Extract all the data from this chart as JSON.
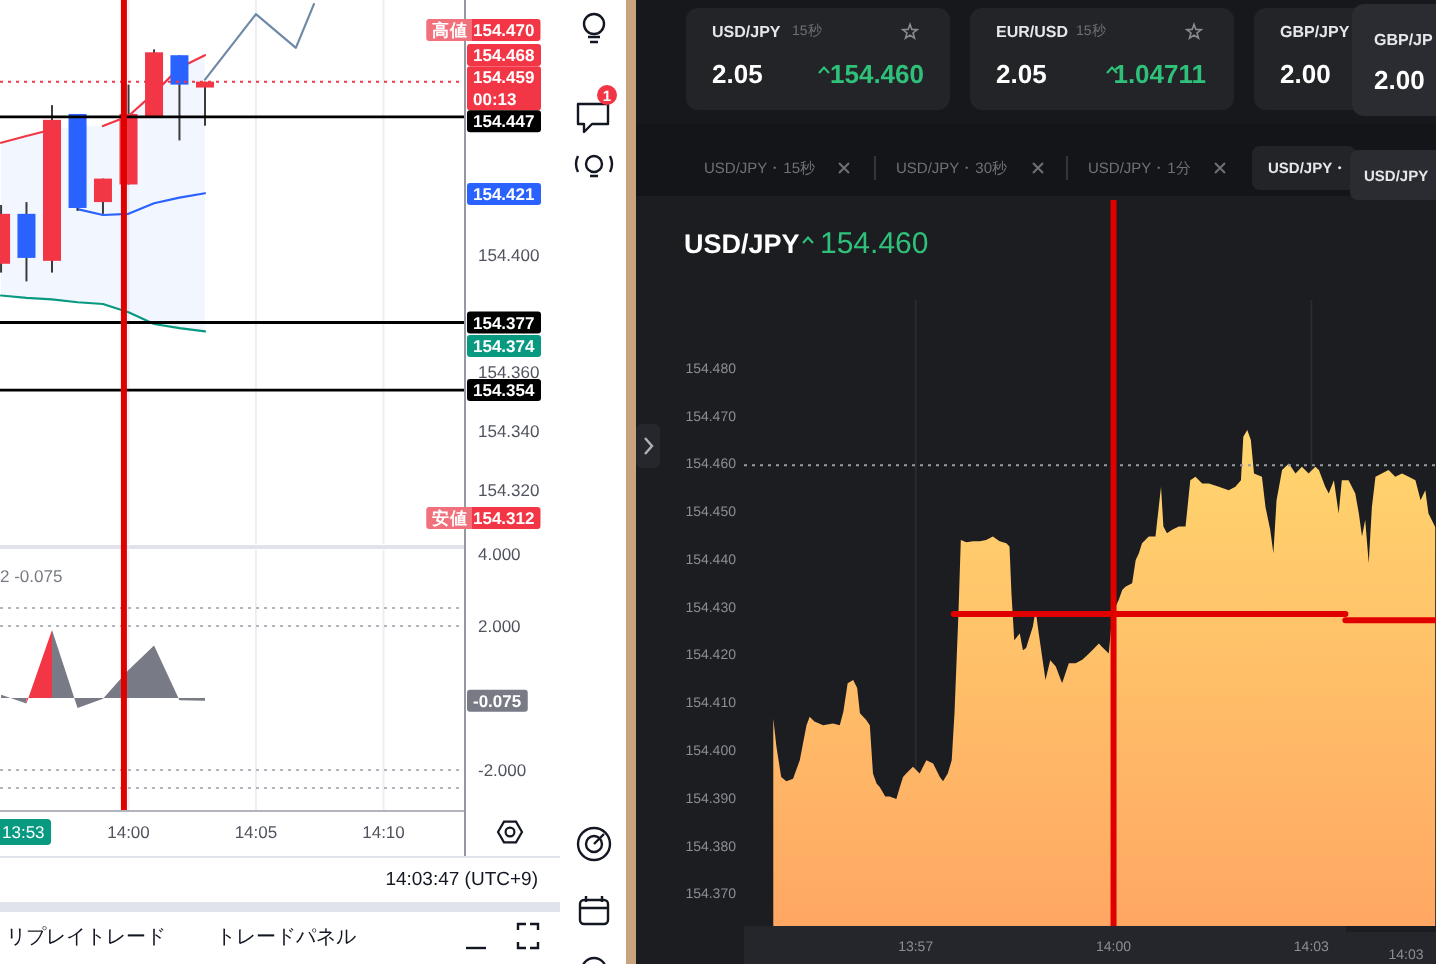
{
  "chart_data": [
    {
      "type": "candlestick",
      "x": [
        13.9167,
        13.9333,
        13.95,
        13.9667,
        13.9833,
        14.0,
        14.0167,
        14.0333,
        14.05
      ],
      "ohlc": [
        [
          154.397,
          154.417,
          154.394,
          154.414
        ],
        [
          154.414,
          154.418,
          154.391,
          154.399
        ],
        [
          154.398,
          154.451,
          154.394,
          154.446
        ],
        [
          154.448,
          154.448,
          154.415,
          154.416
        ],
        [
          154.418,
          154.426,
          154.414,
          154.426
        ],
        [
          154.424,
          154.458,
          154.424,
          154.448
        ],
        [
          154.447,
          154.47,
          154.447,
          154.469
        ],
        [
          154.468,
          154.468,
          154.439,
          154.458
        ],
        [
          154.457,
          154.459,
          154.444,
          154.459
        ]
      ],
      "colors": [
        "#f23645",
        "#2962ff",
        "#f23645",
        "#2962ff",
        "#f23645",
        "#f23645",
        "#f23645",
        "#2962ff",
        "#f23645"
      ],
      "series": [
        {
          "type": "line",
          "color": "#f23645",
          "values": [
            154.4382,
            154.4405,
            154.4427,
            null,
            154.4439,
            154.4473,
            154.4551,
            154.4637,
            154.468
          ]
        },
        {
          "type": "line",
          "color": "#2962ff",
          "values": [
            null,
            null,
            null,
            154.4156,
            154.4136,
            154.414,
            154.4176,
            154.4195,
            154.421
          ],
          "lower": [
            154.3862,
            154.3854,
            154.3849,
            154.3839,
            154.3833,
            154.3805,
            154.3765,
            154.3751,
            154.374
          ],
          "upper": [
            154.4382,
            154.4405,
            154.4427,
            154.4439,
            154.4439,
            154.4473,
            154.4551,
            154.4637,
            154.468
          ]
        },
        {
          "type": "line",
          "color": "#089981",
          "values": [
            154.3862,
            154.3854,
            154.3849,
            154.3839,
            154.3833,
            154.3805,
            154.3765,
            154.3751,
            154.374
          ]
        },
        {
          "type": "line",
          "color": "#6f8aa6",
          "x": [
            14.05,
            14.0833,
            14.1094,
            14.1212
          ],
          "values": [
            154.4597,
            154.482,
            154.4705,
            154.4854
          ]
        }
      ],
      "xlim": [
        13.916,
        14.2193
      ],
      "xticks": [
        {
          "value": 14.0,
          "label": null
        },
        {
          "value": 14.0833,
          "label": null
        },
        {
          "value": 14.1667,
          "label": null
        }
      ],
      "ylim": [
        154.3016,
        154.4868
      ],
      "yticks": [
        {
          "value": 154.32,
          "label": "154.320"
        },
        {
          "value": 154.34,
          "label": "154.340"
        },
        {
          "value": 154.36,
          "label": "154.360"
        },
        {
          "value": 154.4,
          "label": "154.400"
        }
      ],
      "tick_labels": "y",
      "grid": "x",
      "ref_lines": [
        {
          "axis": "y",
          "value": 154.459,
          "label": "154.459\n00:13",
          "color": "#f23645",
          "line_style": "dotted"
        },
        {
          "axis": "y",
          "value": 154.447,
          "label": "154.447",
          "color": "#000000"
        },
        {
          "axis": "y",
          "value": 154.377,
          "label": "154.377",
          "color": "#000000"
        },
        {
          "axis": "y",
          "value": 154.354,
          "label": "154.354",
          "color": "#000000"
        },
        {
          "axis": "x",
          "value": 13.997,
          "color": "#e00000"
        }
      ],
      "annotations": [
        "高値 154.470",
        "154.468",
        "154.421",
        "154.374",
        "安値 154.312"
      ]
    },
    {
      "type": "area",
      "series": [
        {
          "color": "#787b86",
          "x": [
            13.9167,
            13.9333
          ],
          "values": [
            0.09,
            -0.15
          ]
        },
        {
          "color": "#f23645",
          "x": [
            13.9333,
            13.95
          ],
          "values": [
            -0.15,
            1.89
          ]
        },
        {
          "color": "#787b86",
          "x": [
            13.95,
            13.9667,
            13.9833,
            14.0,
            14.0167,
            14.0333,
            14.05
          ],
          "values": [
            1.89,
            -0.28,
            -0.02,
            0.78,
            1.46,
            -0.06,
            -0.075
          ]
        }
      ],
      "xlim": [
        13.916,
        14.2193
      ],
      "xticks": [
        {
          "value": 14.0,
          "label": "14:00"
        },
        {
          "value": 14.0833,
          "label": "14:05"
        },
        {
          "value": 14.1667,
          "label": "14:10"
        }
      ],
      "ylim": [
        -3.11,
        4.11
      ],
      "yticks": [
        {
          "value": -2,
          "label": "-2.000"
        },
        {
          "value": 2,
          "label": "2.000"
        },
        {
          "value": 4,
          "label": "4.000"
        }
      ],
      "grid": "x",
      "ref_lines": [
        {
          "axis": "y",
          "value": 2.5,
          "color": "#b2b5be",
          "line_style": "dotted"
        },
        {
          "axis": "y",
          "value": 2,
          "color": "#b2b5be",
          "line_style": "dotted"
        },
        {
          "axis": "y",
          "value": -2,
          "color": "#b2b5be",
          "line_style": "dotted"
        },
        {
          "axis": "y",
          "value": -2.5,
          "color": "#b2b5be",
          "line_style": "dotted"
        },
        {
          "axis": "x",
          "value": 13.997,
          "color": "#e00000"
        }
      ],
      "annotations": [
        "2 -0.075",
        "13:53",
        {
          "text": "-0.075",
          "y": -0.075
        }
      ]
    },
    {
      "type": "other",
      "annotations": [
        "14:03:47 (UTC+9)",
        "リプレイトレード",
        "トレードパネル",
        "1"
      ]
    },
    {
      "type": "other",
      "annotations": [
        "USD/JPY",
        "15秒",
        "2.05",
        "154.460",
        "EUR/USD",
        "15秒",
        "2.05",
        "1.04711",
        "GBP/JPY",
        "2.00",
        "GBP/JP",
        "2.00",
        "USD/JPY・15秒",
        "USD/JPY・30秒",
        "USD/JPY・1分",
        "USD/JPY・",
        "USD/JPY"
      ]
    },
    {
      "type": "area",
      "title": "USD/JPY",
      "subtitle": "154.460",
      "series": [
        {
          "color": "#ffd66e",
          "x": [
            13.914,
            13.9148,
            13.916,
            13.9173,
            13.919,
            13.9207,
            13.9224,
            13.9232,
            13.9244,
            13.9266,
            13.9291,
            13.9308,
            13.9317,
            13.9328,
            13.9342,
            13.9352,
            13.9359,
            13.9375,
            13.9384,
            13.9392,
            13.9401,
            13.9409,
            13.9423,
            13.9434,
            13.9451,
            13.946,
            13.9468,
            13.9476,
            13.9493,
            13.951,
            13.9527,
            13.9544,
            13.9561,
            13.9569,
            13.9581,
            13.9591,
            13.9598,
            13.9608,
            13.9614,
            13.9628,
            13.9645,
            13.9662,
            13.9678,
            13.9695,
            13.9712,
            13.9729,
            13.9737,
            13.9742,
            13.9749,
            13.9763,
            13.9771,
            13.9779,
            13.9796,
            13.9803,
            13.9811,
            13.9828,
            13.984,
            13.9854,
            13.987,
            13.9887,
            13.9904,
            13.9921,
            13.9938,
            13.9963,
            13.9971,
            13.9988,
            13.9997,
            14.0005,
            14.0013,
            14.0022,
            14.003,
            14.0047,
            14.0056,
            14.0064,
            14.0072,
            14.0089,
            14.0106,
            14.012,
            14.0126,
            14.0135,
            14.0148,
            14.0165,
            14.0182,
            14.0194,
            14.0207,
            14.0224,
            14.0241,
            14.0266,
            14.0291,
            14.0308,
            14.0322,
            14.0328,
            14.0338,
            14.0347,
            14.0355,
            14.0375,
            14.0384,
            14.0396,
            14.0404,
            14.0412,
            14.0426,
            14.0443,
            14.046,
            14.0476,
            14.0493,
            14.051,
            14.0519,
            14.0535,
            14.0544,
            14.0557,
            14.0569,
            14.0577,
            14.0594,
            14.0611,
            14.062,
            14.0628,
            14.0636,
            14.0645,
            14.0653,
            14.0662,
            14.0678,
            14.0695,
            14.0712,
            14.0729,
            14.0746,
            14.0763,
            14.0776,
            14.0788,
            14.0796,
            14.0813
          ],
          "values": [
            154.407,
            154.4011,
            154.3948,
            154.3939,
            154.3944,
            154.3983,
            154.4056,
            154.4074,
            154.4064,
            154.4056,
            154.406,
            154.4056,
            154.4084,
            154.4144,
            154.4151,
            154.4134,
            154.4081,
            154.4067,
            154.4056,
            154.3955,
            154.3934,
            154.3927,
            154.3907,
            154.3907,
            154.3902,
            154.3927,
            154.3948,
            154.3955,
            154.3969,
            154.3955,
            154.3983,
            154.3976,
            154.3948,
            154.3939,
            154.3955,
            154.3983,
            154.4081,
            154.429,
            154.4444,
            154.4439,
            154.4441,
            154.4441,
            154.4444,
            154.4451,
            154.4441,
            154.4437,
            154.443,
            154.4332,
            154.4234,
            154.4248,
            154.4213,
            154.4218,
            154.4262,
            154.4297,
            154.4248,
            154.4151,
            154.4192,
            154.4179,
            154.4144,
            154.4186,
            154.4186,
            154.4193,
            154.4206,
            154.4227,
            154.422,
            154.4206,
            154.429,
            154.4304,
            154.4318,
            154.4339,
            154.4346,
            154.4353,
            154.4402,
            154.4416,
            154.4437,
            154.4451,
            154.4451,
            154.4555,
            154.4472,
            154.4458,
            154.4465,
            154.4472,
            154.4472,
            154.4569,
            154.4576,
            154.4562,
            154.4562,
            154.4555,
            154.4548,
            154.4555,
            154.4569,
            154.466,
            154.4674,
            154.4653,
            154.4583,
            154.4576,
            154.4513,
            154.4465,
            154.4416,
            154.4527,
            154.459,
            154.4604,
            154.4583,
            154.4597,
            154.4583,
            154.4597,
            154.459,
            154.4555,
            154.4541,
            154.4569,
            154.4499,
            154.4569,
            154.4569,
            154.4541,
            154.4499,
            154.4451,
            154.4486,
            154.4395,
            154.4513,
            154.4576,
            154.4583,
            154.459,
            154.4576,
            154.4583,
            154.4576,
            154.4569,
            154.4527,
            154.4548,
            154.4499,
            154.4471
          ]
        },
        {
          "type": "line",
          "color": "#e00000",
          "x": [
            13.9596,
            14.0586
          ],
          "values": [
            154.4289,
            154.4289
          ]
        },
        {
          "type": "line",
          "color": "#e00000",
          "x": [
            14.0586,
            14.0815
          ],
          "values": [
            154.4276,
            154.4276
          ]
        }
      ],
      "xlim": [
        13.9066,
        14.0815
      ],
      "xticks": [
        {
          "value": 13.95,
          "label": "13:57"
        },
        {
          "value": 14.0,
          "label": "14:00"
        },
        {
          "value": 14.05,
          "label": "14:03"
        }
      ],
      "ylim": [
        154.3636,
        154.4946
      ],
      "yticks": [
        {
          "value": 154.37,
          "label": "154.370"
        },
        {
          "value": 154.38,
          "label": "154.380"
        },
        {
          "value": 154.39,
          "label": "154.390"
        },
        {
          "value": 154.4,
          "label": "154.400"
        },
        {
          "value": 154.41,
          "label": "154.410"
        },
        {
          "value": 154.42,
          "label": "154.420"
        },
        {
          "value": 154.43,
          "label": "154.430"
        },
        {
          "value": 154.44,
          "label": "154.440"
        },
        {
          "value": 154.45,
          "label": "154.450"
        },
        {
          "value": 154.46,
          "label": "154.460"
        },
        {
          "value": 154.47,
          "label": "154.470"
        },
        {
          "value": 154.48,
          "label": "154.480"
        }
      ],
      "grid": "x",
      "ref_lines": [
        {
          "axis": "y",
          "value": 154.46,
          "color": "#9a9ca3",
          "line_style": "dotted"
        },
        {
          "axis": "x",
          "value": 14.0,
          "color": "#e00000"
        }
      ],
      "annotations": [
        "14:03"
      ]
    }
  ]
}
